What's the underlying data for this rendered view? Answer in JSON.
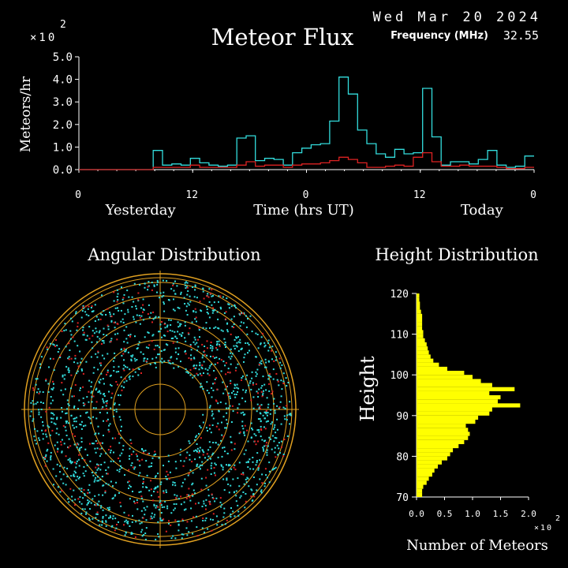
{
  "header": {
    "date": "Wed Mar 20 2024",
    "frequency_label": "Frequency (MHz)",
    "frequency_value": "32.55",
    "colors": {
      "fg": "#ffffff",
      "cyan": "#33dddd",
      "red": "#dd2222",
      "orange": "#e0a020",
      "yellow": "#ffff00"
    }
  },
  "chart_data": [
    {
      "type": "line",
      "title": "Meteor Flux",
      "scale_mult": "×10",
      "scale_exp": "2",
      "ylabel": "Meteors/hr",
      "xlabel": "Time (hrs UT)",
      "ylim": [
        0,
        5
      ],
      "yticks": [
        "0.0",
        "1.0",
        "2.0",
        "3.0",
        "4.0",
        "5.0"
      ],
      "xlim": [
        0,
        48
      ],
      "xticks": [
        {
          "pos": 0,
          "label": "0"
        },
        {
          "pos": 12,
          "label": "12"
        },
        {
          "pos": 24,
          "label": "0"
        },
        {
          "pos": 36,
          "label": "12"
        },
        {
          "pos": 48,
          "label": "0"
        }
      ],
      "day_labels": [
        {
          "pos": 6.5,
          "label": "Yesterday"
        },
        {
          "pos": 42.5,
          "label": "Today"
        }
      ],
      "series": [
        {
          "color": "#33dddd",
          "values": [
            0,
            0,
            0,
            0,
            0,
            0,
            0,
            0,
            0.85,
            0.2,
            0.25,
            0.2,
            0.5,
            0.3,
            0.2,
            0.15,
            0.2,
            1.4,
            1.5,
            0.4,
            0.5,
            0.45,
            0.2,
            0.75,
            0.95,
            1.1,
            1.15,
            2.15,
            4.1,
            3.35,
            1.75,
            1.15,
            0.7,
            0.55,
            0.9,
            0.7,
            0.75,
            3.6,
            1.45,
            0.2,
            0.35,
            0.35,
            0.25,
            0.45,
            0.85,
            0.2,
            0.1,
            0.15,
            0.6
          ]
        },
        {
          "color": "#dd2222",
          "values": [
            0,
            0,
            0,
            0,
            0,
            0,
            0,
            0,
            0.1,
            0.1,
            0.1,
            0.1,
            0.2,
            0.1,
            0.1,
            0.1,
            0.1,
            0.2,
            0.35,
            0.15,
            0.2,
            0.2,
            0.1,
            0.2,
            0.25,
            0.25,
            0.3,
            0.4,
            0.55,
            0.45,
            0.3,
            0.1,
            0.1,
            0.15,
            0.2,
            0.15,
            0.55,
            0.75,
            0.35,
            0.15,
            0.15,
            0.2,
            0.15,
            0.15,
            0.15,
            0.1,
            0.05,
            0.05,
            0.1
          ]
        }
      ]
    },
    {
      "type": "scatter",
      "title": "Angular Distribution",
      "series": [
        {
          "color": "#33dddd",
          "count": 1600
        },
        {
          "color": "#dd2222",
          "count": 320
        }
      ]
    },
    {
      "type": "bar",
      "title": "Height Distribution",
      "ylabel": "Height",
      "xlabel": "Number of Meteors",
      "scale_mult": "×10",
      "scale_exp": "2",
      "ylim": [
        70,
        120
      ],
      "yticks": [
        "70",
        "80",
        "90",
        "100",
        "110",
        "120"
      ],
      "xlim": [
        0,
        2.0
      ],
      "xticks": [
        "0.0",
        "0.5",
        "1.0",
        "1.5",
        "2.0"
      ],
      "bar_color": "#ffff00",
      "heights": [
        70,
        71,
        72,
        73,
        74,
        75,
        76,
        77,
        78,
        79,
        80,
        81,
        82,
        83,
        84,
        85,
        86,
        87,
        88,
        89,
        90,
        91,
        92,
        93,
        94,
        95,
        96,
        97,
        98,
        99,
        100,
        101,
        102,
        103,
        104,
        105,
        106,
        107,
        108,
        109,
        110,
        111,
        112,
        113,
        114,
        115,
        116,
        117,
        118,
        119
      ],
      "values": [
        0.1,
        0.1,
        0.12,
        0.18,
        0.22,
        0.28,
        0.32,
        0.38,
        0.45,
        0.55,
        0.6,
        0.65,
        0.75,
        0.85,
        0.92,
        0.95,
        0.92,
        0.88,
        1.05,
        1.1,
        1.3,
        1.35,
        1.85,
        1.45,
        1.5,
        1.3,
        1.75,
        1.35,
        1.15,
        1.0,
        0.85,
        0.55,
        0.4,
        0.3,
        0.25,
        0.22,
        0.2,
        0.18,
        0.15,
        0.12,
        0.12,
        0.1,
        0.1,
        0.1,
        0.1,
        0.08,
        0.06,
        0.06,
        0.05,
        0.05
      ]
    }
  ]
}
